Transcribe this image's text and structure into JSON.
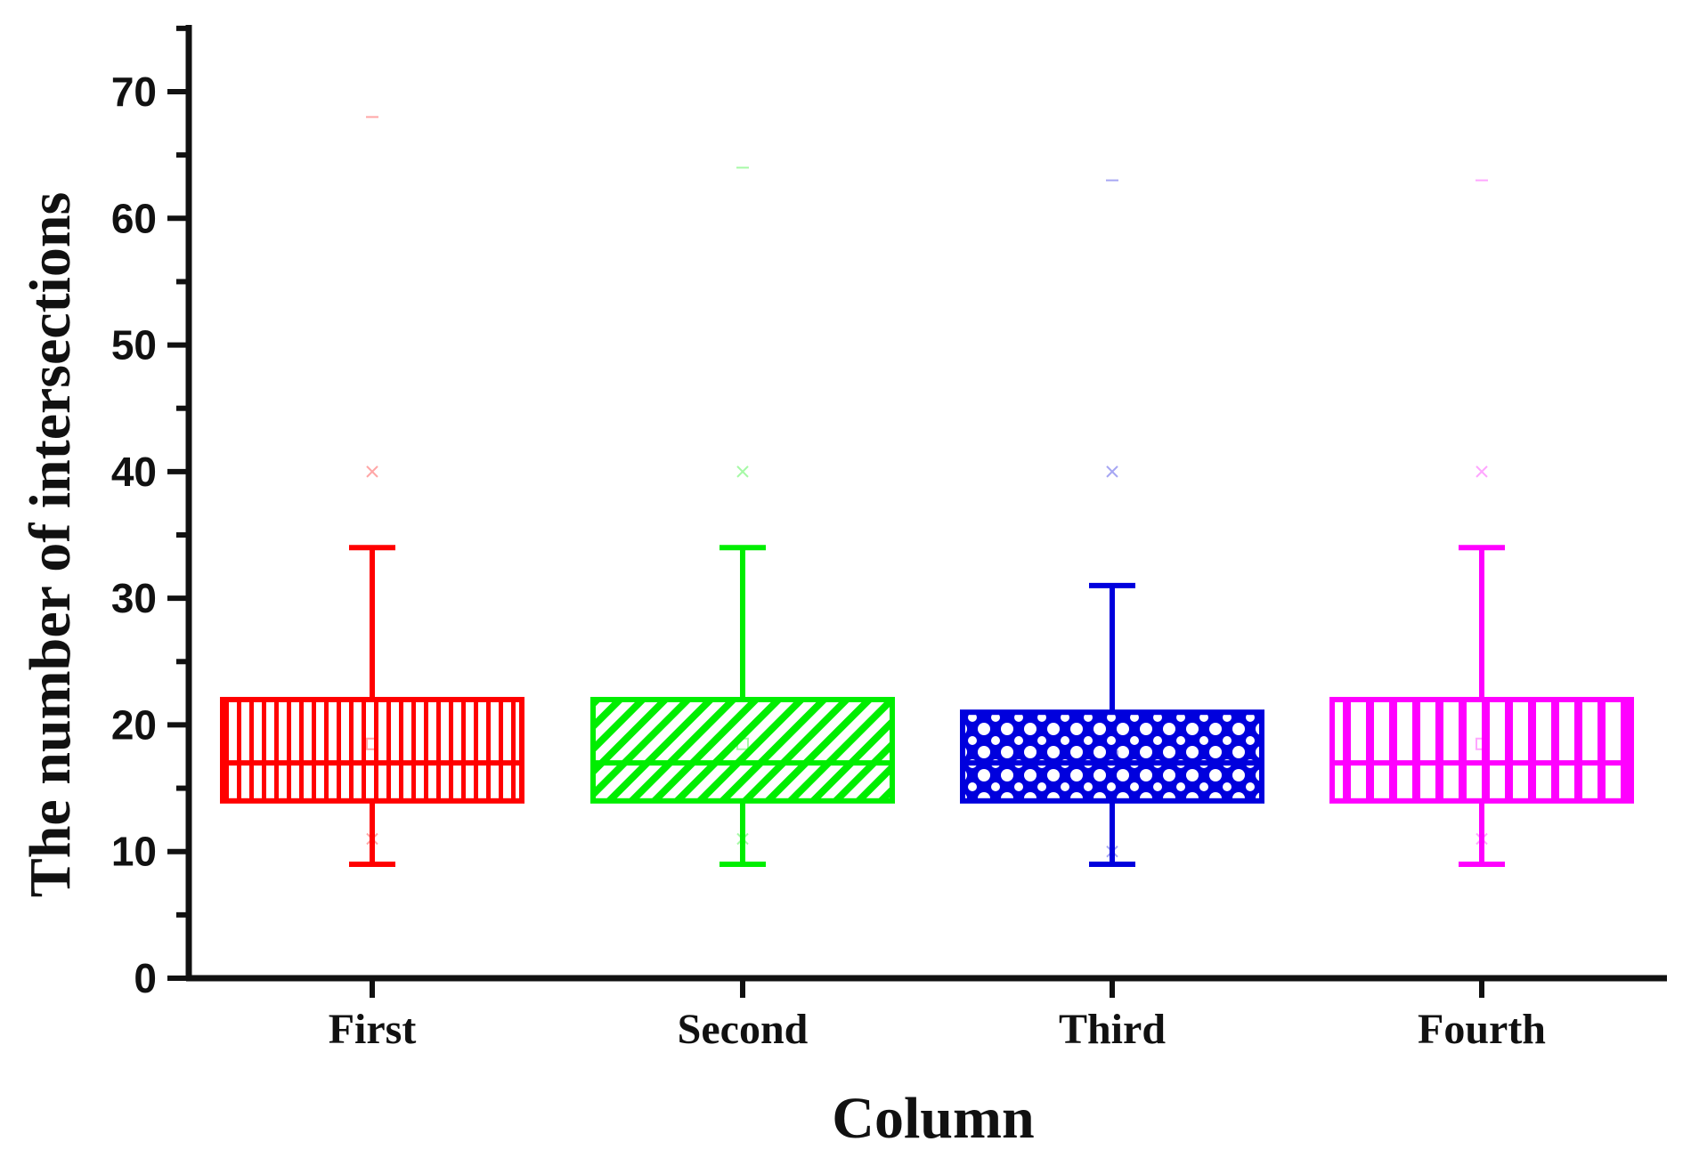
{
  "chart_data": {
    "type": "box",
    "title": "",
    "xlabel": "Column",
    "ylabel": "The number of intersections",
    "ylim": [
      0,
      75
    ],
    "yticks": [
      0,
      10,
      20,
      30,
      40,
      50,
      60,
      70
    ],
    "categories": [
      "First",
      "Second",
      "Third",
      "Fourth"
    ],
    "boxes": [
      {
        "name": "First",
        "color": "#ff0000",
        "pattern": "vertical-dense",
        "whisker_low": 9,
        "q1": 14,
        "median": 17,
        "q3": 22,
        "whisker_high": 34,
        "mean": 18.5,
        "p1": 11,
        "p99": 40,
        "max": 68
      },
      {
        "name": "Second",
        "color": "#00ee00",
        "pattern": "diagonal",
        "whisker_low": 9,
        "q1": 14,
        "median": 17,
        "q3": 22,
        "whisker_high": 34,
        "mean": 18.5,
        "p1": 11,
        "p99": 40,
        "max": 64
      },
      {
        "name": "Third",
        "color": "#0000dd",
        "pattern": "crosshatch",
        "whisker_low": 9,
        "q1": 14,
        "median": 17,
        "q3": 21,
        "whisker_high": 31,
        "mean": 17.5,
        "p1": 10,
        "p99": 40,
        "max": 63
      },
      {
        "name": "Fourth",
        "color": "#ff00ff",
        "pattern": "vertical-wide",
        "whisker_low": 9,
        "q1": 14,
        "median": 17,
        "q3": 22,
        "whisker_high": 34,
        "mean": 18.5,
        "p1": 11,
        "p99": 40,
        "max": 63
      }
    ],
    "grid": false,
    "legend": "none"
  }
}
